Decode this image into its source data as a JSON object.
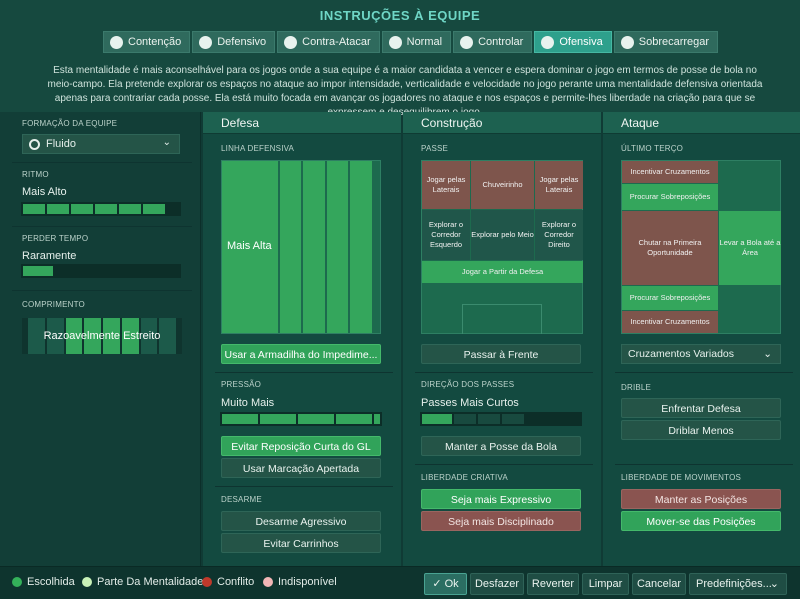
{
  "title": "INSTRUÇÕES À EQUIPE",
  "tabs": [
    {
      "label": "Contenção",
      "icon": "contain-icon"
    },
    {
      "label": "Defensivo",
      "icon": "shield-icon"
    },
    {
      "label": "Contra-Atacar",
      "icon": "counter-icon"
    },
    {
      "label": "Normal",
      "icon": "ball-icon"
    },
    {
      "label": "Controlar",
      "icon": "control-icon"
    },
    {
      "label": "Ofensiva",
      "icon": "attack-icon",
      "active": true
    },
    {
      "label": "Sobrecarregar",
      "icon": "overload-icon"
    }
  ],
  "description": "Esta mentalidade é mais aconselhável para os jogos onde a sua equipe é a maior candidata a vencer e espera dominar o jogo em termos de posse de bola no meio-campo. Ela pretende explorar os espaços no ataque ao impor intensidade, verticalidade e velocidade no jogo perante uma mentalidade defensiva orientada apenas para contrariar cada posse. Ela está muito focada em avançar os jogadores no ataque e nos espaços e permite-lhes liberdade na criação para que se expressem e desequilibrem o jogo.",
  "left": {
    "formation_label": "FORMAÇÃO DA EQUIPE",
    "formation_value": "Fluido",
    "tempo_label": "RITMO",
    "tempo_value": "Mais Alto",
    "tempo_level": 0.88,
    "time_waste_label": "PERDER TEMPO",
    "time_waste_value": "Raramente",
    "time_waste_level": 0.2,
    "width_label": "COMPRIMENTO",
    "width_value": "Razoavelmente Estreito"
  },
  "defense": {
    "header": "Defesa",
    "line_label": "LINHA DEFENSIVA",
    "line_value": "Mais Alta",
    "offside_button": "Usar a Armadilha do Impedime...",
    "press_label": "PRESSÃO",
    "press_value": "Muito Mais",
    "press_level": 0.95,
    "gk_button": "Evitar Reposição Curta do GL",
    "marking_button": "Usar Marcação Apertada",
    "tackle_label": "DESARME",
    "tackle_aggressive": "Desarme Agressivo",
    "tackle_avoid": "Evitar Carrinhos"
  },
  "construction": {
    "header": "Construção",
    "pass_label": "PASSE",
    "zones": [
      "Jogar pelas Laterais",
      "Chuveirinho",
      "Jogar pelas Laterais",
      "Explorar o Corredor Esquerdo",
      "Explorar pelo Meio",
      "Explorar o Corredor Direito",
      "Jogar a Partir da Defesa"
    ],
    "forward_button": "Passar à Frente",
    "direction_label": "DIREÇÃO DOS PASSES",
    "direction_value": "Passes Mais Curtos",
    "direction_level": 0.2,
    "possession_button": "Manter a Posse da Bola",
    "creative_label": "LIBERDADE CRIATIVA",
    "expressive_button": "Seja mais Expressivo",
    "disciplined_button": "Seja mais Disciplinado"
  },
  "attack": {
    "header": "Ataque",
    "third_label": "ÚLTIMO TERÇO",
    "zones": [
      "Incentivar Cruzamentos",
      "Procurar Sobreposições",
      "Chutar na Primeira Oportunidade",
      "Levar a Bola até a Área",
      "Procurar Sobreposições",
      "Incentivar Cruzamentos"
    ],
    "crossing_value": "Cruzamentos Variados",
    "dribble_label": "DRIBLE",
    "dribble_run": "Enfrentar Defesa",
    "dribble_less": "Driblar Menos",
    "movement_label": "LIBERDADE DE MOVIMENTOS",
    "hold_position": "Manter as Posições",
    "roam_position": "Mover-se das Posições"
  },
  "legend": [
    {
      "label": "Escolhida",
      "color": "#34b15a"
    },
    {
      "label": "Parte Da Mentalidade",
      "color": "#c9f2b8"
    },
    {
      "label": "Conflito",
      "color": "#c0392b"
    },
    {
      "label": "Indisponível",
      "color": "#f2b6b6"
    }
  ],
  "footer": {
    "ok": "Ok",
    "undo": "Desfazer",
    "revert": "Reverter",
    "clear": "Limpar",
    "cancel": "Cancelar",
    "presets": "Predefinições..."
  },
  "colors": {
    "chosen": "#31a35a",
    "conflict": "#8a5450",
    "accent": "#6fd6c6"
  }
}
